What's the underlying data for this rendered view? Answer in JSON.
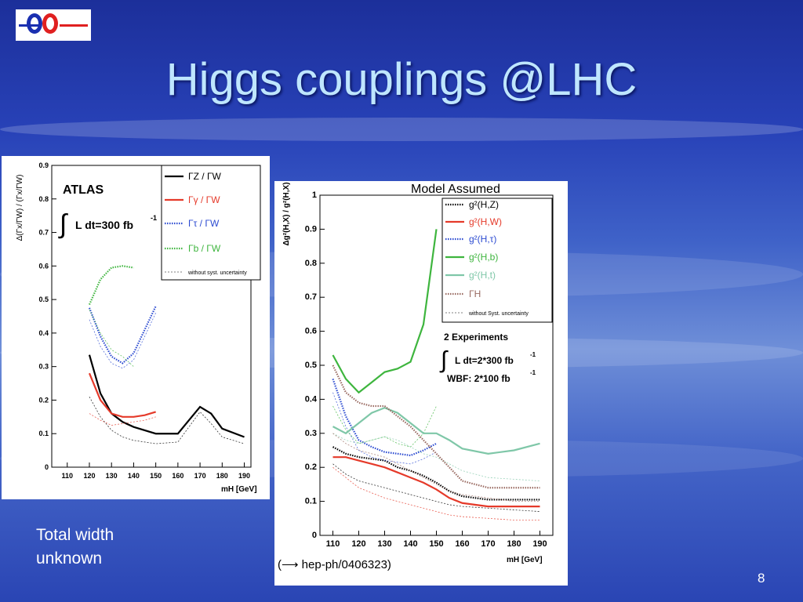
{
  "slide": {
    "title": "Higgs couplings @LHC",
    "note_line1": "Total width",
    "note_line2": "unknown",
    "page_number": "8"
  },
  "chart_data": [
    {
      "type": "line",
      "experiment_label": "ATLAS",
      "lumi_label": "L dt=300 fb",
      "lumi_exp": "-1",
      "xlabel": "mH [GeV]",
      "ylabel": "Δ(Γx/ΓW) / (Γx/ΓW)",
      "xlim": [
        103,
        193
      ],
      "ylim": [
        0,
        0.9
      ],
      "xticks": [
        110,
        120,
        130,
        140,
        150,
        160,
        170,
        180,
        190
      ],
      "yticks": [
        0,
        0.1,
        0.2,
        0.3,
        0.4,
        0.5,
        0.6,
        0.7,
        0.8,
        0.9
      ],
      "legend_placement": "top-right",
      "legend_note": "without syst. uncertainty",
      "series": [
        {
          "name": "ΓZ / ΓW",
          "color": "#000000",
          "style": "solid",
          "x": [
            120,
            125,
            130,
            135,
            140,
            150,
            160,
            165,
            170,
            175,
            180,
            190
          ],
          "y": [
            0.335,
            0.22,
            0.16,
            0.135,
            0.12,
            0.1,
            0.1,
            0.14,
            0.18,
            0.16,
            0.115,
            0.09
          ],
          "syst_y": [
            0.21,
            0.15,
            0.11,
            0.09,
            0.08,
            0.07,
            0.075,
            0.12,
            0.165,
            0.13,
            0.09,
            0.07
          ]
        },
        {
          "name": "Γγ / ΓW",
          "color": "#e53a2a",
          "style": "solid",
          "x": [
            120,
            125,
            130,
            135,
            140,
            145,
            150
          ],
          "y": [
            0.28,
            0.2,
            0.16,
            0.15,
            0.15,
            0.155,
            0.165
          ],
          "syst_y": [
            0.16,
            0.14,
            0.125,
            0.13,
            0.135,
            0.14,
            0.15
          ]
        },
        {
          "name": "Γτ / ΓW",
          "color": "#2c4bd1",
          "style": "dotted",
          "x": [
            120,
            125,
            130,
            135,
            140,
            145,
            150
          ],
          "y": [
            0.475,
            0.39,
            0.33,
            0.31,
            0.34,
            0.41,
            0.48
          ],
          "syst_y": [
            0.44,
            0.36,
            0.31,
            0.295,
            0.32,
            0.39,
            0.46
          ]
        },
        {
          "name": "Γb / ΓW",
          "color": "#3eb53e",
          "style": "dotted",
          "x": [
            120,
            125,
            130,
            135,
            140
          ],
          "y": [
            0.485,
            0.56,
            0.595,
            0.6,
            0.595
          ],
          "syst_y": [
            0.47,
            0.4,
            0.35,
            0.33,
            0.3
          ]
        }
      ]
    },
    {
      "type": "line",
      "header": "Model Assumed",
      "experiments_label": "2 Experiments",
      "lumi_label": "L dt=2*300 fb",
      "lumi_exp": "-1",
      "wbf_label": "WBF: 2*100 fb",
      "wbf_exp": "-1",
      "reference": "(⟶ hep-ph/0406323)",
      "xlabel": "mH [GeV]",
      "ylabel": "Δg²(H,X) / g²(H,X)",
      "xlim": [
        105,
        195
      ],
      "ylim": [
        0,
        1
      ],
      "xticks": [
        110,
        120,
        130,
        140,
        150,
        160,
        170,
        180,
        190
      ],
      "yticks": [
        0,
        0.1,
        0.2,
        0.3,
        0.4,
        0.5,
        0.6,
        0.7,
        0.8,
        0.9,
        1
      ],
      "legend_placement": "top-right",
      "legend_note": "without Syst. uncertainty",
      "series": [
        {
          "name": "g²(H,Z)",
          "color": "#000000",
          "style": "dotted",
          "x": [
            110,
            115,
            120,
            125,
            130,
            135,
            140,
            145,
            150,
            155,
            160,
            170,
            180,
            190
          ],
          "y": [
            0.26,
            0.24,
            0.23,
            0.225,
            0.22,
            0.2,
            0.19,
            0.175,
            0.155,
            0.13,
            0.115,
            0.105,
            0.105,
            0.105
          ],
          "syst_y": [
            0.21,
            0.18,
            0.16,
            0.15,
            0.14,
            0.13,
            0.12,
            0.11,
            0.1,
            0.09,
            0.085,
            0.08,
            0.075,
            0.07
          ]
        },
        {
          "name": "g²(H,W)",
          "color": "#e53a2a",
          "style": "solid",
          "x": [
            110,
            115,
            120,
            125,
            130,
            135,
            140,
            145,
            150,
            155,
            160,
            170,
            180,
            190
          ],
          "y": [
            0.23,
            0.23,
            0.22,
            0.21,
            0.2,
            0.185,
            0.17,
            0.155,
            0.135,
            0.11,
            0.095,
            0.085,
            0.085,
            0.085
          ],
          "syst_y": [
            0.2,
            0.17,
            0.14,
            0.125,
            0.11,
            0.1,
            0.09,
            0.08,
            0.07,
            0.06,
            0.055,
            0.05,
            0.045,
            0.045
          ]
        },
        {
          "name": "g²(H,τ)",
          "color": "#2c4bd1",
          "style": "dotted",
          "x": [
            110,
            115,
            120,
            125,
            130,
            135,
            140,
            145,
            150
          ],
          "y": [
            0.46,
            0.35,
            0.28,
            0.26,
            0.245,
            0.24,
            0.235,
            0.25,
            0.27
          ],
          "syst_y": [
            0.42,
            0.32,
            0.25,
            0.23,
            0.22,
            0.215,
            0.21,
            0.225,
            0.245
          ]
        },
        {
          "name": "g²(H,b)",
          "color": "#3eb53e",
          "style": "solid",
          "x": [
            110,
            115,
            120,
            125,
            130,
            135,
            140,
            145,
            150
          ],
          "y": [
            0.53,
            0.46,
            0.42,
            0.45,
            0.48,
            0.49,
            0.51,
            0.62,
            0.9
          ],
          "syst_y": [
            0.38,
            0.31,
            0.27,
            0.28,
            0.29,
            0.27,
            0.26,
            0.3,
            0.38
          ]
        },
        {
          "name": "g²(H,t)",
          "color": "#7fc7a8",
          "style": "solid",
          "x": [
            110,
            115,
            120,
            125,
            130,
            135,
            140,
            145,
            150,
            155,
            160,
            170,
            180,
            190
          ],
          "y": [
            0.32,
            0.3,
            0.33,
            0.36,
            0.375,
            0.36,
            0.33,
            0.3,
            0.3,
            0.28,
            0.255,
            0.24,
            0.25,
            0.27
          ],
          "syst_y": [
            0.3,
            0.28,
            0.27,
            0.28,
            0.29,
            0.28,
            0.26,
            0.24,
            0.23,
            0.21,
            0.19,
            0.17,
            0.165,
            0.16
          ]
        },
        {
          "name": "ΓH",
          "color": "#9a6b62",
          "style": "dotted",
          "x": [
            110,
            115,
            120,
            125,
            130,
            135,
            140,
            145,
            150,
            155,
            160,
            170,
            180,
            190
          ],
          "y": [
            0.5,
            0.42,
            0.39,
            0.38,
            0.38,
            0.35,
            0.32,
            0.28,
            0.24,
            0.2,
            0.16,
            0.14,
            0.14,
            0.14
          ],
          "syst_y": [
            0.3,
            0.27,
            0.25,
            0.24,
            0.23,
            0.21,
            0.19,
            0.17,
            0.15,
            0.13,
            0.12,
            0.11,
            0.1,
            0.1
          ]
        }
      ]
    }
  ]
}
